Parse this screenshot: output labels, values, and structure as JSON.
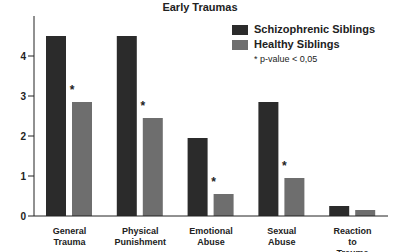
{
  "chart_data": {
    "type": "bar",
    "title": "Early Traumas",
    "categories": [
      "General Trauma",
      "Physical Punishment",
      "Emotional Abuse",
      "Sexual Abuse",
      "Reaction to Trauma"
    ],
    "series": [
      {
        "name": "Schizophrenic Siblings",
        "color": "#2b2b2b",
        "values": [
          4.5,
          4.5,
          1.95,
          2.85,
          0.25
        ]
      },
      {
        "name": "Healthy Siblings",
        "color": "#6e6e6e",
        "values": [
          2.85,
          2.45,
          0.55,
          0.95,
          0.15
        ],
        "annotations": [
          "*",
          "*",
          "*",
          "*",
          null
        ]
      }
    ],
    "annotations": [
      "* p-value < 0,05"
    ],
    "ylim": [
      0,
      5
    ],
    "yticks": [
      0,
      1,
      2,
      3,
      4
    ],
    "grid": false,
    "legend": "top-right"
  }
}
